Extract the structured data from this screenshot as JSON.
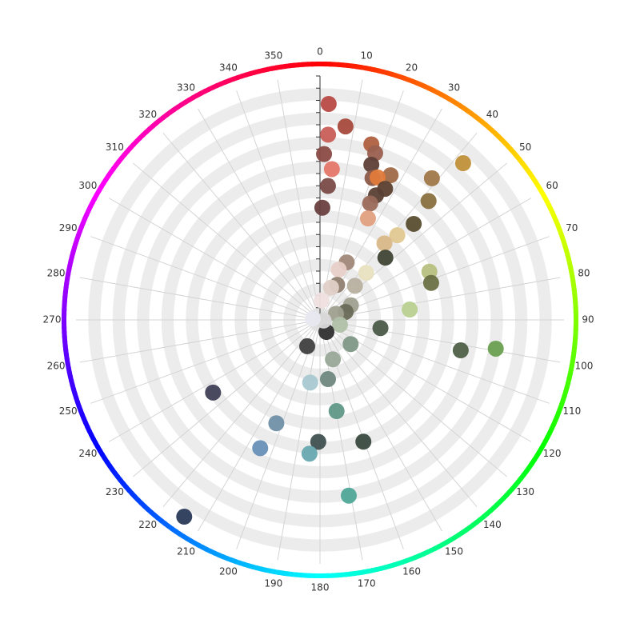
{
  "chart_data": {
    "type": "polar-scatter",
    "angle_lim": [
      0,
      360
    ],
    "angle_ticks": [
      0,
      10,
      20,
      30,
      40,
      50,
      60,
      70,
      80,
      90,
      100,
      110,
      120,
      130,
      140,
      150,
      160,
      170,
      180,
      190,
      200,
      210,
      220,
      230,
      240,
      250,
      260,
      270,
      280,
      290,
      300,
      310,
      320,
      330,
      340,
      350
    ],
    "rlim": [
      0,
      100
    ],
    "rticks": [
      0,
      5,
      10,
      15,
      20,
      25,
      30,
      35,
      40,
      45,
      50,
      55,
      60,
      65,
      70,
      75,
      80,
      85,
      90,
      95,
      100
    ],
    "x": [
      2.3,
      7.5,
      2.5,
      1.4,
      4.5,
      3.4,
      1.2,
      16.3,
      18.3,
      18.3,
      26,
      20.3,
      22,
      26.4,
      24.2,
      23.3,
      25.3,
      42.4,
      38.3,
      42.4,
      44.3,
      42.4,
      40.1,
      46.4,
      66.2,
      71.6,
      83.4,
      24.9,
      20.4,
      44.5,
      45.7,
      26,
      18.9,
      64.7,
      72.6,
      69,
      4.6,
      97.7,
      102.2,
      99.3,
      128.3,
      103.5,
      151.9,
      161.9,
      172.3,
      169.7,
      160.4,
      170.7,
      180.8,
      184.5,
      188.9,
      202.9,
      205,
      235.8,
      214.6,
      205.9,
      100,
      280
    ],
    "values": [
      88.6,
      80,
      76,
      68,
      62,
      55,
      46,
      75,
      72,
      67,
      66,
      62,
      63,
      60,
      56,
      52,
      46,
      87,
      74,
      66,
      55,
      47,
      41,
      37,
      49,
      48,
      37,
      26,
      22,
      27,
      20,
      16,
      14,
      14,
      11,
      7,
      8,
      25,
      59,
      73,
      16,
      8.4,
      5.6,
      17,
      24.5,
      38,
      53,
      73,
      50,
      55,
      26,
      46,
      58,
      53,
      98,
      12,
      1.5,
      3
    ],
    "colors": [
      "#b94a45",
      "#a84a3d",
      "#c85e57",
      "#8a4a44",
      "#e5776a",
      "#7a4a48",
      "#6a4040",
      "#b06040",
      "#9b6050",
      "#5e4038",
      "#a06a48",
      "#8b5a48",
      "#e07a3a",
      "#5c4030",
      "#5a4035",
      "#9a6a58",
      "#e0a080",
      "#c0903a",
      "#a07848",
      "#8a7040",
      "#5a4e30",
      "#e0c890",
      "#d8b888",
      "#404535",
      "#b8c080",
      "#6a7045",
      "#b8d090",
      "#a08878",
      "#e8d0c8",
      "#e8e0c0",
      "#b8b0a0",
      "#908070",
      "#e0d0c8",
      "#a0a090",
      "#6a6a58",
      "#a0a090",
      "#f0e0e0",
      "#4a5a48",
      "#506048",
      "#6aa050",
      "#809888",
      "#b0c0a8",
      "#303030",
      "#98a898",
      "#708880",
      "#609888",
      "#3a4a40",
      "#50a898",
      "#405050",
      "#68a8b0",
      "#a8c8d0",
      "#7090a8",
      "#6890b8",
      "#404058",
      "#2a3a58",
      "#404040",
      "#d8d8d8",
      "#e8e8f0"
    ]
  }
}
